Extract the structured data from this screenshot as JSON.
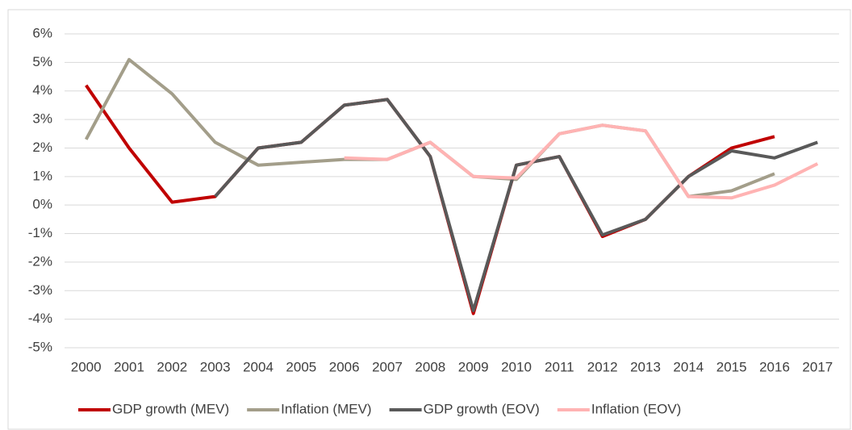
{
  "chart_data": {
    "type": "line",
    "categories": [
      "2000",
      "2001",
      "2002",
      "2003",
      "2004",
      "2005",
      "2006",
      "2007",
      "2008",
      "2009",
      "2010",
      "2011",
      "2012",
      "2013",
      "2014",
      "2015",
      "2016",
      "2017"
    ],
    "series": [
      {
        "name": "GDP growth (MEV)",
        "color": "#c00000",
        "values": [
          4.2,
          2.0,
          0.1,
          0.3,
          2.0,
          2.2,
          3.5,
          3.7,
          1.7,
          -3.8,
          1.4,
          1.7,
          -1.1,
          -0.5,
          1.0,
          2.0,
          2.4,
          null
        ]
      },
      {
        "name": "Inflation (MEV)",
        "color": "#a39e8a",
        "values": [
          2.3,
          5.1,
          3.9,
          2.2,
          1.4,
          1.5,
          1.6,
          1.6,
          2.2,
          1.0,
          0.9,
          2.5,
          2.8,
          2.6,
          0.3,
          0.5,
          1.1,
          null
        ]
      },
      {
        "name": "GDP growth (EOV)",
        "color": "#595959",
        "values": [
          null,
          null,
          null,
          0.3,
          2.0,
          2.2,
          3.5,
          3.7,
          1.7,
          -3.7,
          1.4,
          1.7,
          -1.05,
          -0.5,
          1.0,
          1.9,
          1.65,
          2.2
        ]
      },
      {
        "name": "Inflation (EOV)",
        "color": "#ffb3b3",
        "values": [
          null,
          null,
          null,
          null,
          null,
          null,
          1.65,
          1.6,
          2.2,
          1.0,
          0.95,
          2.5,
          2.8,
          2.6,
          0.3,
          0.25,
          0.7,
          1.45
        ]
      }
    ],
    "ylim": [
      -5,
      6
    ],
    "yticks": [
      {
        "value": -5,
        "label": "-5%"
      },
      {
        "value": -4,
        "label": "-4%"
      },
      {
        "value": -3,
        "label": "-3%"
      },
      {
        "value": -2,
        "label": "-2%"
      },
      {
        "value": -1,
        "label": "-1%"
      },
      {
        "value": 0,
        "label": "0%"
      },
      {
        "value": 1,
        "label": "1%"
      },
      {
        "value": 2,
        "label": "2%"
      },
      {
        "value": 3,
        "label": "3%"
      },
      {
        "value": 4,
        "label": "4%"
      },
      {
        "value": 5,
        "label": "5%"
      },
      {
        "value": 6,
        "label": "6%"
      }
    ],
    "grid": true,
    "legend": "bottom"
  }
}
